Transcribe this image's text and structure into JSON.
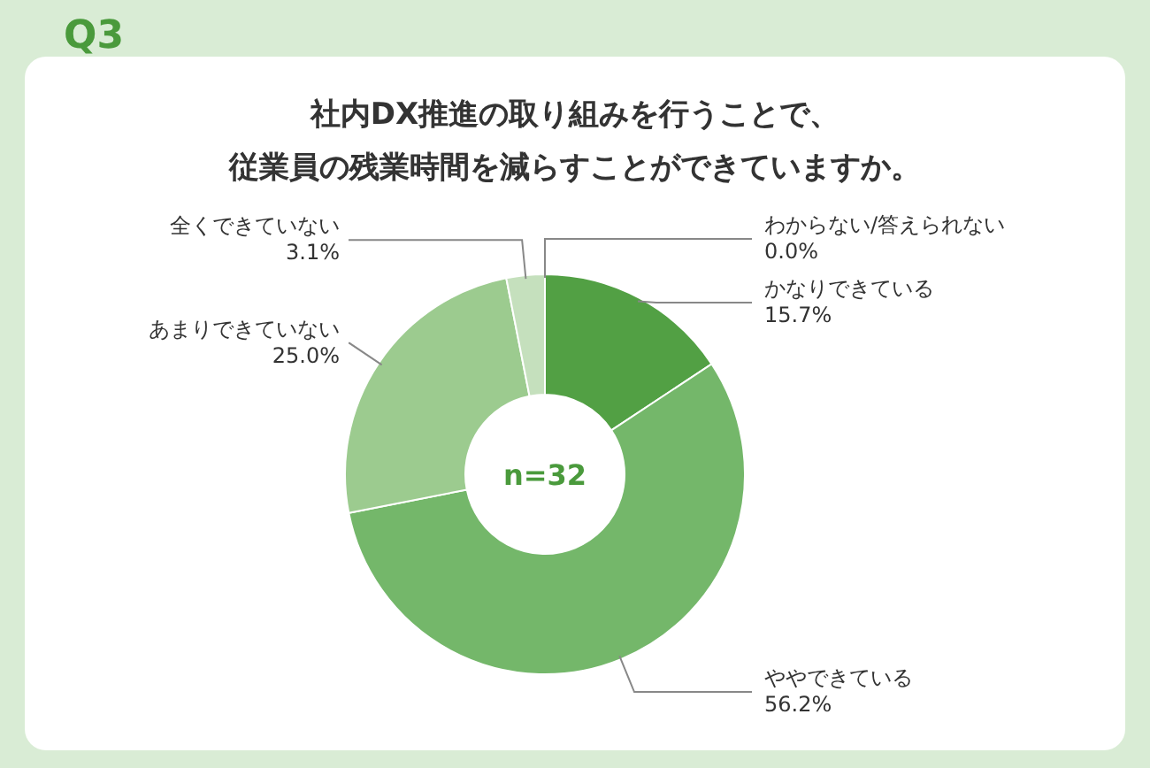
{
  "chart_data": {
    "type": "donut",
    "title": "社内DX推進の取り組みを行うことで、従業員の残業時間を減らすことができていますか。",
    "categories": [
      "わからない/答えられない",
      "かなりできている",
      "ややできている",
      "あまりできていない",
      "全くできていない"
    ],
    "values": [
      0.0,
      15.7,
      56.2,
      25.0,
      3.1
    ],
    "value_labels": [
      "0.0%",
      "15.7%",
      "56.2%",
      "25.0%",
      "3.1%"
    ],
    "colors": [
      null,
      "#52a044",
      "#74b76a",
      "#9ccb8f",
      "#c5e0bd"
    ],
    "annotations": [
      "Q3",
      "n=32"
    ]
  }
}
